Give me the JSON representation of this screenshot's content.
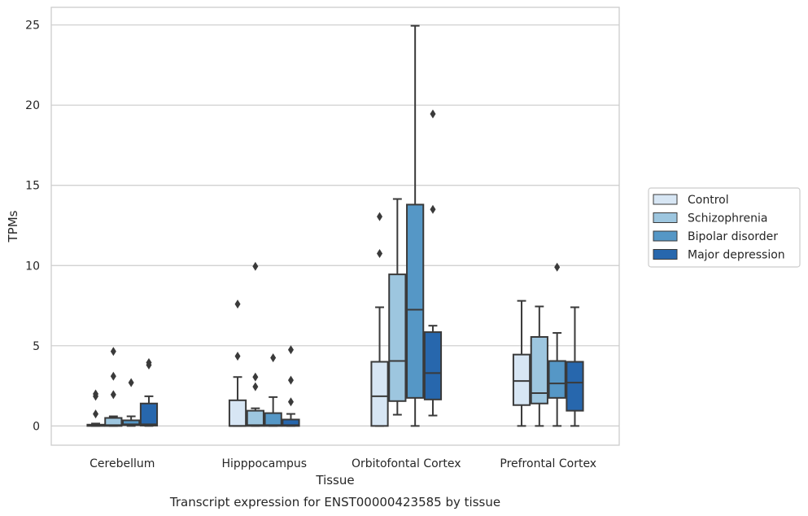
{
  "chart_data": {
    "type": "box",
    "caption": "Transcript expression for ENST00000423585 by tissue",
    "xlabel": "Tissue",
    "ylabel": "TPMs",
    "ylim": [
      -1.2,
      26.1
    ],
    "yticks": [
      0,
      5,
      10,
      15,
      20,
      25
    ],
    "grid": "horizontal",
    "legend_position": "right",
    "categories": [
      "Cerebellum",
      "Hipppocampus",
      "Orbitofontal Cortex",
      "Prefrontal Cortex"
    ],
    "series": [
      {
        "name": "Control",
        "color": "#d7e6f4",
        "boxes": [
          {
            "whislo": 0,
            "q1": 0,
            "med": 0.02,
            "q3": 0.08,
            "whishi": 0.15,
            "fliers": [
              0.75,
              1.85,
              2.0
            ]
          },
          {
            "whislo": 0,
            "q1": 0,
            "med": 0,
            "q3": 1.6,
            "whishi": 3.05,
            "fliers": [
              4.35,
              7.6
            ]
          },
          {
            "whislo": 0,
            "q1": 0,
            "med": 1.85,
            "q3": 4.0,
            "whishi": 7.4,
            "fliers": [
              10.75,
              13.05
            ]
          },
          {
            "whislo": 0,
            "q1": 1.3,
            "med": 2.8,
            "q3": 4.45,
            "whishi": 7.8,
            "fliers": []
          }
        ]
      },
      {
        "name": "Schizophrenia",
        "color": "#9dc6df",
        "boxes": [
          {
            "whislo": 0,
            "q1": 0,
            "med": 0.05,
            "q3": 0.5,
            "whishi": 0.6,
            "fliers": [
              1.95,
              3.1,
              4.65
            ]
          },
          {
            "whislo": 0,
            "q1": 0,
            "med": 0.05,
            "q3": 0.95,
            "whishi": 1.1,
            "fliers": [
              2.45,
              3.05,
              9.95
            ]
          },
          {
            "whislo": 0.7,
            "q1": 1.55,
            "med": 4.05,
            "q3": 9.45,
            "whishi": 14.15,
            "fliers": []
          },
          {
            "whislo": 0,
            "q1": 1.4,
            "med": 2.05,
            "q3": 5.55,
            "whishi": 7.45,
            "fliers": []
          }
        ]
      },
      {
        "name": "Bipolar disorder",
        "color": "#5597c6",
        "boxes": [
          {
            "whislo": 0,
            "q1": 0.05,
            "med": 0.1,
            "q3": 0.35,
            "whishi": 0.6,
            "fliers": [
              2.7
            ]
          },
          {
            "whislo": 0,
            "q1": 0,
            "med": 0.05,
            "q3": 0.8,
            "whishi": 1.8,
            "fliers": [
              4.25
            ]
          },
          {
            "whislo": 0,
            "q1": 1.75,
            "med": 7.25,
            "q3": 13.8,
            "whishi": 24.95,
            "fliers": []
          },
          {
            "whislo": 0,
            "q1": 1.75,
            "med": 2.65,
            "q3": 4.05,
            "whishi": 5.8,
            "fliers": [
              9.9
            ]
          }
        ]
      },
      {
        "name": "Major depression",
        "color": "#2767ad",
        "boxes": [
          {
            "whislo": 0,
            "q1": 0.02,
            "med": 0.1,
            "q3": 1.4,
            "whishi": 1.85,
            "fliers": [
              3.8,
              3.95
            ]
          },
          {
            "whislo": 0,
            "q1": 0,
            "med": 0.05,
            "q3": 0.4,
            "whishi": 0.75,
            "fliers": [
              1.5,
              2.85,
              4.75
            ]
          },
          {
            "whislo": 0.65,
            "q1": 1.65,
            "med": 3.3,
            "q3": 5.85,
            "whishi": 6.25,
            "fliers": [
              13.5,
              19.45
            ]
          },
          {
            "whislo": 0,
            "q1": 0.95,
            "med": 2.7,
            "q3": 4.0,
            "whishi": 7.4,
            "fliers": []
          }
        ]
      }
    ]
  }
}
